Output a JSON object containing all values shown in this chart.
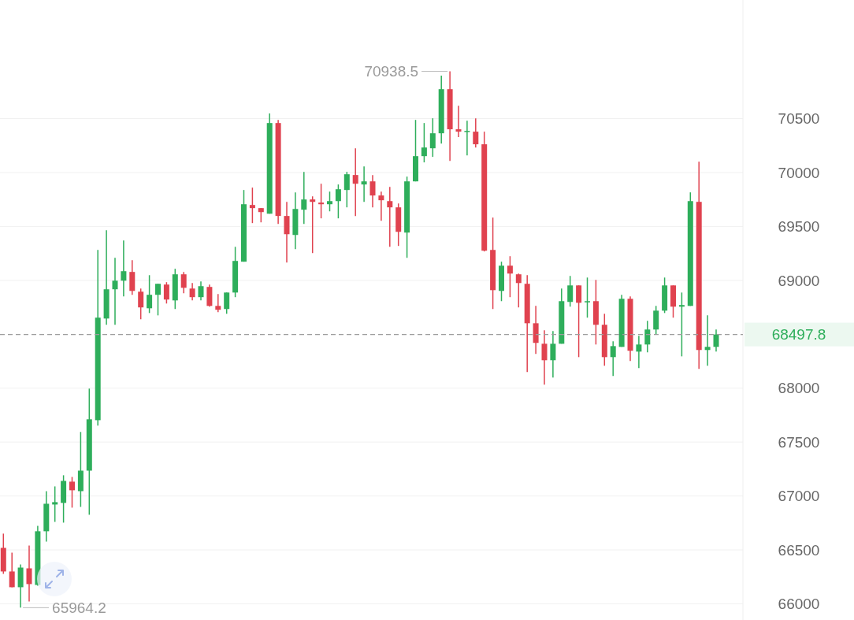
{
  "chart_data": {
    "type": "candlestick",
    "categories": [
      null,
      null,
      null,
      null,
      null,
      null,
      null,
      null,
      null,
      null,
      null,
      null,
      null,
      null,
      null,
      null,
      null,
      null,
      null,
      null,
      null,
      null,
      null,
      null,
      null,
      null,
      null,
      null,
      null,
      null,
      null,
      null,
      null,
      null,
      null,
      null,
      null,
      null,
      null,
      null,
      null,
      null,
      null,
      null,
      null,
      null,
      null,
      null,
      null,
      null,
      null,
      null,
      null,
      null,
      null,
      null,
      null,
      null,
      null,
      null,
      null,
      null,
      null,
      null,
      null,
      null,
      null,
      null,
      null,
      null,
      null,
      null,
      null,
      null,
      null,
      null,
      null,
      null,
      null,
      null,
      null,
      null,
      null,
      null
    ],
    "ohlc": [
      [
        66519,
        66651,
        66278,
        66300
      ],
      [
        66300,
        66475,
        66154,
        66154
      ],
      [
        66154,
        66365,
        65964.2,
        66336
      ],
      [
        66329,
        66541,
        66022,
        66183
      ],
      [
        66175,
        66724,
        66168,
        66673
      ],
      [
        66673,
        67045,
        66577,
        66928
      ],
      [
        66921,
        67089,
        66760,
        66943
      ],
      [
        66936,
        67192,
        66753,
        67140
      ],
      [
        67133,
        67177,
        66892,
        67053
      ],
      [
        67045,
        67594,
        66899,
        67235
      ],
      [
        67235,
        67996,
        66826,
        67711
      ],
      [
        67703,
        69282,
        67652,
        68654
      ],
      [
        68646,
        69465,
        68588,
        68917
      ],
      [
        68917,
        69209,
        68588,
        68997
      ],
      [
        68997,
        69370,
        68851,
        69085
      ],
      [
        69078,
        69187,
        68866,
        68902
      ],
      [
        68895,
        68924,
        68639,
        68749
      ],
      [
        68741,
        69048,
        68697,
        68866
      ],
      [
        68866,
        68968,
        68675,
        68968
      ],
      [
        68961,
        68983,
        68785,
        68822
      ],
      [
        68814,
        69107,
        68734,
        69056
      ],
      [
        69056,
        69078,
        68880,
        68931
      ],
      [
        68924,
        68975,
        68814,
        68844
      ],
      [
        68844,
        68990,
        68814,
        68946
      ],
      [
        68939,
        68961,
        68756,
        68763
      ],
      [
        68763,
        68873,
        68705,
        68727
      ],
      [
        68734,
        68887,
        68690,
        68887
      ],
      [
        68887,
        69311,
        68844,
        69180
      ],
      [
        69173,
        69838,
        69173,
        69706
      ],
      [
        69699,
        69860,
        69531,
        69670
      ],
      [
        69670,
        69670,
        69538,
        69633
      ],
      [
        69618,
        70547,
        69618,
        70459
      ],
      [
        70459,
        70488,
        69523,
        69597
      ],
      [
        69597,
        69728,
        69165,
        69428
      ],
      [
        69421,
        69816,
        69290,
        69662
      ],
      [
        69655,
        70006,
        69523,
        69750
      ],
      [
        69750,
        69779,
        69253,
        69728
      ],
      [
        69721,
        69896,
        69575,
        69706
      ],
      [
        69706,
        69823,
        69640,
        69735
      ],
      [
        69735,
        69889,
        69575,
        69845
      ],
      [
        69838,
        70006,
        69677,
        69984
      ],
      [
        69977,
        70225,
        69597,
        69896
      ],
      [
        69889,
        70057,
        69728,
        69918
      ],
      [
        69918,
        69977,
        69677,
        69787
      ],
      [
        69787,
        69823,
        69553,
        69743
      ],
      [
        69735,
        69867,
        69311,
        69677
      ],
      [
        69677,
        69713,
        69319,
        69450
      ],
      [
        69443,
        69962,
        69209,
        69918
      ],
      [
        69918,
        70488,
        69918,
        70152
      ],
      [
        70152,
        70459,
        70094,
        70232
      ],
      [
        70225,
        70503,
        70145,
        70364
      ],
      [
        70364,
        70898,
        70269,
        70773
      ],
      [
        70773,
        70938.5,
        70108,
        70401
      ],
      [
        70401,
        70620,
        70328,
        70379
      ],
      [
        70379,
        70481,
        70159,
        70386
      ],
      [
        70379,
        70503,
        70232,
        70262
      ],
      [
        70262,
        70379,
        69268,
        69275
      ],
      [
        69282,
        69582,
        68734,
        68909
      ],
      [
        68902,
        69173,
        68807,
        69136
      ],
      [
        69136,
        69224,
        68844,
        69063
      ],
      [
        69056,
        69063,
        68749,
        68975
      ],
      [
        68968,
        69048,
        68149,
        68602
      ],
      [
        68602,
        68763,
        68317,
        68420
      ],
      [
        68412,
        68537,
        68032,
        68259
      ],
      [
        68259,
        68529,
        68098,
        68412
      ],
      [
        68412,
        68924,
        68412,
        68807
      ],
      [
        68800,
        69041,
        68756,
        68953
      ],
      [
        68953,
        68953,
        68288,
        68792
      ],
      [
        68800,
        69026,
        68654,
        68807
      ],
      [
        68807,
        69004,
        68405,
        68588
      ],
      [
        68588,
        68690,
        68208,
        68288
      ],
      [
        68288,
        68434,
        68113,
        68390
      ],
      [
        68383,
        68866,
        68383,
        68829
      ],
      [
        68829,
        68851,
        68252,
        68347
      ],
      [
        68339,
        68485,
        68186,
        68405
      ],
      [
        68405,
        68624,
        68332,
        68544
      ],
      [
        68544,
        68763,
        68500,
        68719
      ],
      [
        68719,
        69026,
        68697,
        68953
      ],
      [
        68953,
        68953,
        68654,
        68756
      ],
      [
        68756,
        68887,
        68295,
        68771
      ],
      [
        68763,
        69816,
        68763,
        69735
      ],
      [
        69728,
        70101,
        68178,
        68354
      ],
      [
        68354,
        68676,
        68208,
        68383
      ],
      [
        68383,
        68544,
        68339,
        68497.8
      ]
    ],
    "ylim": [
      65850,
      71600
    ],
    "yticks": [
      66000,
      66500,
      67000,
      67500,
      68000,
      69000,
      69500,
      70000,
      70500
    ],
    "grid": "y",
    "tick_labels": "y",
    "ref_lines": [
      {
        "axis": "y",
        "value": 68497.8,
        "label": "68497.8",
        "color": "#9e9e9e",
        "line_style": "dashed"
      }
    ],
    "annotations": [
      "70938.5",
      "65964.2"
    ]
  }
}
